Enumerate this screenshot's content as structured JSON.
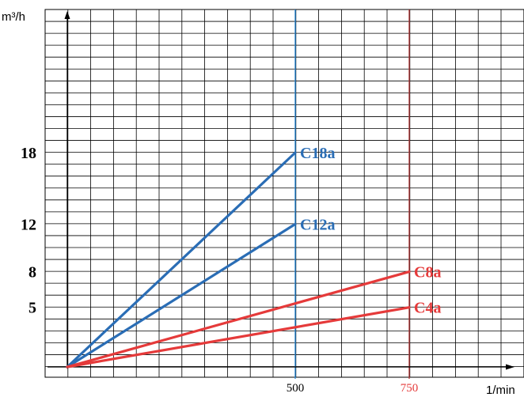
{
  "chart_data": {
    "type": "line",
    "ylabel": "m³/h",
    "xlabel": "1/min",
    "y_ticks": [
      5,
      8,
      12,
      18
    ],
    "x_ticks": [
      {
        "value": 500,
        "label": "500",
        "color": "#000000"
      },
      {
        "value": 750,
        "label": "750",
        "color": "#e53a3a"
      }
    ],
    "grid": true,
    "series": [
      {
        "name": "C18a",
        "color": "#2a6db5",
        "x": [
          0,
          500
        ],
        "y": [
          0,
          18
        ]
      },
      {
        "name": "C12a",
        "color": "#2a6db5",
        "x": [
          0,
          500
        ],
        "y": [
          0,
          12
        ]
      },
      {
        "name": "C8a",
        "color": "#e53a3a",
        "x": [
          0,
          750
        ],
        "y": [
          0,
          8
        ]
      },
      {
        "name": "C4a",
        "color": "#e53a3a",
        "x": [
          0,
          750
        ],
        "y": [
          0,
          5
        ]
      }
    ],
    "reference_lines": [
      {
        "x": 500,
        "color": "#2a8ad6"
      },
      {
        "x": 750,
        "color": "#b03a3a"
      }
    ]
  }
}
